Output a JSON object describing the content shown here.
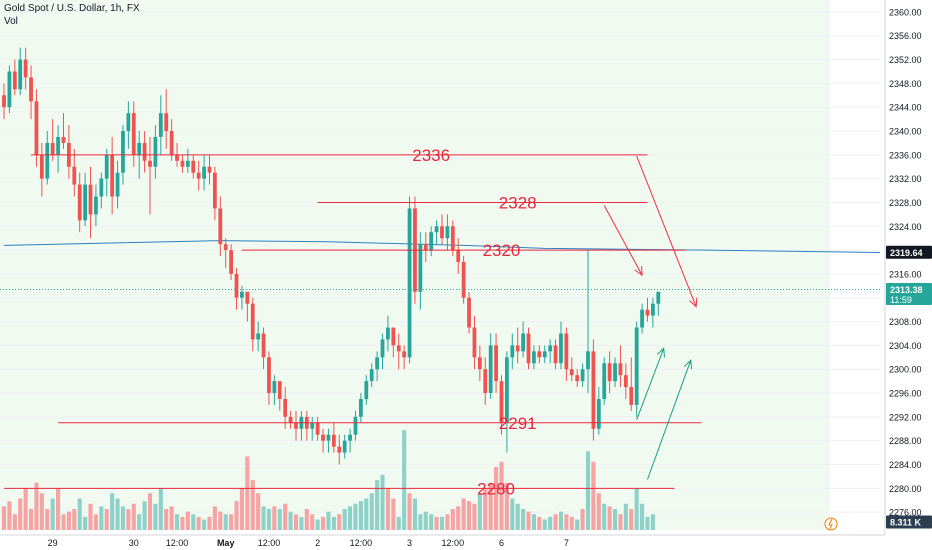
{
  "header": {
    "symbol_line": "Gold Spot / U.S. Dollar, 1h, FX",
    "volume_label": "Vol"
  },
  "price_axis": {
    "ticks": [
      "2360.00",
      "2356.00",
      "2352.00",
      "2348.00",
      "2344.00",
      "2340.00",
      "2336.00",
      "2332.00",
      "2328.00",
      "2324.00",
      "2320.00",
      "2316.00",
      "2312.00",
      "2308.00",
      "2304.00",
      "2300.00",
      "2296.00",
      "2292.00",
      "2288.00",
      "2284.00",
      "2280.00",
      "2276.00"
    ],
    "ma_tag": "2319.64",
    "last_price_tag": "2313.38",
    "countdown": "11:59",
    "volume_tag": "8.311 K"
  },
  "time_axis": {
    "labels": [
      "29",
      "30",
      "12:00",
      "May",
      "12:00",
      "2",
      "12:00",
      "3",
      "12:00",
      "6",
      "7"
    ]
  },
  "colors": {
    "up": "#26a69a",
    "down": "#ef5350",
    "up_volume": "#8dd1c8",
    "down_volume": "#f5a3a3",
    "moving_average": "#2e7fc0",
    "levels": "#e8283e",
    "arrow_red": "#ef3040",
    "arrow_green": "#169e7e",
    "background_tint": "#f1faf1"
  },
  "chart_data": {
    "type": "candlestick",
    "ylim": [
      2273,
      2362
    ],
    "x_span_bars": [
      0,
      162
    ],
    "ohlc": [
      [
        2346,
        2348,
        2342,
        2344
      ],
      [
        2344,
        2351,
        2343,
        2350
      ],
      [
        2350,
        2352,
        2346,
        2347
      ],
      [
        2347,
        2354,
        2346,
        2352
      ],
      [
        2352,
        2354,
        2347,
        2349
      ],
      [
        2349,
        2351,
        2342,
        2345
      ],
      [
        2345,
        2347,
        2334,
        2336
      ],
      [
        2336,
        2338,
        2329,
        2332
      ],
      [
        2332,
        2340,
        2331,
        2338
      ],
      [
        2338,
        2342,
        2335,
        2336
      ],
      [
        2336,
        2341,
        2333,
        2339
      ],
      [
        2339,
        2343,
        2337,
        2338
      ],
      [
        2338,
        2341,
        2332,
        2334
      ],
      [
        2334,
        2337,
        2329,
        2331
      ],
      [
        2331,
        2333,
        2323,
        2325
      ],
      [
        2325,
        2333,
        2324,
        2331
      ],
      [
        2331,
        2334,
        2322,
        2326
      ],
      [
        2326,
        2331,
        2324,
        2329
      ],
      [
        2329,
        2333,
        2327,
        2332
      ],
      [
        2332,
        2337,
        2329,
        2336
      ],
      [
        2336,
        2339,
        2326,
        2329
      ],
      [
        2329,
        2335,
        2327,
        2333
      ],
      [
        2333,
        2341,
        2331,
        2340
      ],
      [
        2340,
        2345,
        2337,
        2343
      ],
      [
        2343,
        2345,
        2334,
        2336
      ],
      [
        2336,
        2340,
        2332,
        2338
      ],
      [
        2338,
        2340,
        2333,
        2335
      ],
      [
        2335,
        2339,
        2326,
        2334
      ],
      [
        2334,
        2341,
        2332,
        2339
      ],
      [
        2339,
        2346,
        2336,
        2343
      ],
      [
        2343,
        2347,
        2337,
        2340
      ],
      [
        2340,
        2342,
        2335,
        2336
      ],
      [
        2336,
        2338,
        2334,
        2335
      ],
      [
        2335,
        2336,
        2333,
        2334
      ],
      [
        2334,
        2337,
        2333,
        2335
      ],
      [
        2335,
        2336,
        2332,
        2333
      ],
      [
        2333,
        2335,
        2330,
        2332
      ],
      [
        2332,
        2336,
        2330,
        2334
      ],
      [
        2334,
        2336,
        2331,
        2333
      ],
      [
        2333,
        2334,
        2325,
        2327
      ],
      [
        2327,
        2329,
        2319,
        2321
      ],
      [
        2321,
        2322,
        2317,
        2320
      ],
      [
        2320,
        2321,
        2315,
        2316
      ],
      [
        2316,
        2317,
        2310,
        2312
      ],
      [
        2312,
        2314,
        2310,
        2313
      ],
      [
        2313,
        2313,
        2308,
        2311
      ],
      [
        2311,
        2312,
        2303,
        2305
      ],
      [
        2305,
        2308,
        2303,
        2306
      ],
      [
        2306,
        2307,
        2300,
        2302
      ],
      [
        2302,
        2303,
        2294,
        2296
      ],
      [
        2296,
        2299,
        2294,
        2298
      ],
      [
        2298,
        2298,
        2293,
        2295
      ],
      [
        2295,
        2297,
        2290,
        2292
      ],
      [
        2292,
        2293,
        2290,
        2291
      ],
      [
        2291,
        2293,
        2288,
        2290
      ],
      [
        2290,
        2293,
        2288,
        2292
      ],
      [
        2292,
        2293,
        2288,
        2290
      ],
      [
        2290,
        2292,
        2288,
        2291
      ],
      [
        2291,
        2292,
        2288,
        2289
      ],
      [
        2289,
        2290,
        2286,
        2288
      ],
      [
        2288,
        2290,
        2286,
        2289
      ],
      [
        2289,
        2291,
        2286,
        2287
      ],
      [
        2287,
        2289,
        2284,
        2286
      ],
      [
        2286,
        2289,
        2285,
        2288
      ],
      [
        2288,
        2290,
        2286,
        2289
      ],
      [
        2289,
        2293,
        2288,
        2292
      ],
      [
        2292,
        2296,
        2291,
        2295
      ],
      [
        2295,
        2299,
        2294,
        2298
      ],
      [
        2298,
        2301,
        2297,
        2300
      ],
      [
        2300,
        2303,
        2298,
        2302
      ],
      [
        2302,
        2306,
        2300,
        2305
      ],
      [
        2305,
        2309,
        2303,
        2307
      ],
      [
        2307,
        2307,
        2302,
        2304
      ],
      [
        2304,
        2306,
        2300,
        2303
      ],
      [
        2303,
        2304,
        2300,
        2302
      ],
      [
        2302,
        2329,
        2301,
        2327
      ],
      [
        2327,
        2329,
        2311,
        2313
      ],
      [
        2313,
        2323,
        2310,
        2321
      ],
      [
        2321,
        2323,
        2318,
        2320
      ],
      [
        2320,
        2324,
        2319,
        2323
      ],
      [
        2323,
        2325,
        2321,
        2324
      ],
      [
        2324,
        2326,
        2321,
        2322
      ],
      [
        2322,
        2326,
        2320,
        2324
      ],
      [
        2324,
        2325,
        2319,
        2320
      ],
      [
        2320,
        2322,
        2316,
        2318
      ],
      [
        2318,
        2319,
        2311,
        2312
      ],
      [
        2312,
        2313,
        2306,
        2307
      ],
      [
        2307,
        2309,
        2300,
        2302
      ],
      [
        2302,
        2304,
        2298,
        2300
      ],
      [
        2300,
        2302,
        2294,
        2296
      ],
      [
        2296,
        2306,
        2295,
        2304
      ],
      [
        2304,
        2306,
        2296,
        2298
      ],
      [
        2298,
        2299,
        2289,
        2291
      ],
      [
        2291,
        2303,
        2286,
        2302
      ],
      [
        2302,
        2306,
        2300,
        2304
      ],
      [
        2304,
        2307,
        2301,
        2303
      ],
      [
        2303,
        2308,
        2302,
        2306
      ],
      [
        2306,
        2307,
        2300,
        2301
      ],
      [
        2301,
        2304,
        2300,
        2303
      ],
      [
        2303,
        2304,
        2301,
        2302
      ],
      [
        2302,
        2304,
        2301,
        2303
      ],
      [
        2303,
        2305,
        2301,
        2304
      ],
      [
        2304,
        2305,
        2300,
        2301
      ],
      [
        2301,
        2308,
        2300,
        2306
      ],
      [
        2306,
        2307,
        2298,
        2300
      ],
      [
        2300,
        2302,
        2298,
        2299
      ],
      [
        2299,
        2300,
        2297,
        2298
      ],
      [
        2298,
        2301,
        2297,
        2300
      ],
      [
        2300,
        2320,
        2296,
        2303
      ],
      [
        2303,
        2305,
        2288,
        2290
      ],
      [
        2290,
        2297,
        2289,
        2295
      ],
      [
        2295,
        2302,
        2294,
        2301
      ],
      [
        2301,
        2303,
        2296,
        2298
      ],
      [
        2298,
        2302,
        2297,
        2301
      ],
      [
        2301,
        2304,
        2297,
        2299
      ],
      [
        2299,
        2301,
        2295,
        2297
      ],
      [
        2297,
        2302,
        2293,
        2294
      ],
      [
        2294,
        2308,
        2292,
        2307
      ],
      [
        2307,
        2311,
        2306,
        2310
      ],
      [
        2310,
        2312,
        2308,
        2309
      ],
      [
        2309,
        2312,
        2307,
        2311
      ],
      [
        2311,
        2313,
        2309,
        2313
      ]
    ],
    "moving_average": [
      [
        0,
        2320.8
      ],
      [
        40,
        2321.6
      ],
      [
        60,
        2321.4
      ],
      [
        85,
        2320.8
      ],
      [
        100,
        2320.3
      ],
      [
        130,
        2320.0
      ],
      [
        162,
        2319.6
      ]
    ],
    "volume": [
      [
        9,
        0
      ],
      [
        11,
        0
      ],
      [
        6,
        0
      ],
      [
        12,
        0
      ],
      [
        16,
        0
      ],
      [
        8,
        0
      ],
      [
        18,
        0
      ],
      [
        14,
        0
      ],
      [
        8,
        0
      ],
      [
        12,
        1
      ],
      [
        16,
        0
      ],
      [
        6,
        0
      ],
      [
        7,
        0
      ],
      [
        8,
        0
      ],
      [
        12,
        1
      ],
      [
        5,
        1
      ],
      [
        10,
        0
      ],
      [
        6,
        0
      ],
      [
        9,
        1
      ],
      [
        8,
        0
      ],
      [
        14,
        1
      ],
      [
        12,
        1
      ],
      [
        9,
        1
      ],
      [
        8,
        0
      ],
      [
        10,
        0
      ],
      [
        6,
        1
      ],
      [
        11,
        1
      ],
      [
        14,
        0
      ],
      [
        10,
        1
      ],
      [
        16,
        1
      ],
      [
        8,
        0
      ],
      [
        9,
        0
      ],
      [
        6,
        1
      ],
      [
        5,
        0
      ],
      [
        7,
        0
      ],
      [
        6,
        1
      ],
      [
        5,
        0
      ],
      [
        4,
        1
      ],
      [
        5,
        0
      ],
      [
        9,
        0
      ],
      [
        7,
        0
      ],
      [
        6,
        1
      ],
      [
        6,
        0
      ],
      [
        11,
        0
      ],
      [
        16,
        0
      ],
      [
        28,
        0
      ],
      [
        19,
        0
      ],
      [
        14,
        0
      ],
      [
        9,
        1
      ],
      [
        8,
        1
      ],
      [
        9,
        0
      ],
      [
        8,
        1
      ],
      [
        10,
        0
      ],
      [
        7,
        1
      ],
      [
        6,
        0
      ],
      [
        5,
        1
      ],
      [
        8,
        0
      ],
      [
        6,
        0
      ],
      [
        4,
        1
      ],
      [
        5,
        0
      ],
      [
        7,
        1
      ],
      [
        5,
        1
      ],
      [
        6,
        0
      ],
      [
        8,
        1
      ],
      [
        9,
        1
      ],
      [
        10,
        1
      ],
      [
        11,
        1
      ],
      [
        12,
        1
      ],
      [
        14,
        1
      ],
      [
        19,
        1
      ],
      [
        21,
        1
      ],
      [
        16,
        0
      ],
      [
        12,
        0
      ],
      [
        5,
        1
      ],
      [
        38,
        1
      ],
      [
        14,
        0
      ],
      [
        12,
        1
      ],
      [
        6,
        1
      ],
      [
        7,
        1
      ],
      [
        6,
        1
      ],
      [
        5,
        0
      ],
      [
        5,
        1
      ],
      [
        6,
        0
      ],
      [
        8,
        0
      ],
      [
        9,
        0
      ],
      [
        12,
        0
      ],
      [
        11,
        0
      ],
      [
        10,
        0
      ],
      [
        14,
        1
      ],
      [
        16,
        0
      ],
      [
        18,
        0
      ],
      [
        24,
        0
      ],
      [
        26,
        0
      ],
      [
        18,
        0
      ],
      [
        12,
        1
      ],
      [
        10,
        1
      ],
      [
        8,
        1
      ],
      [
        7,
        0
      ],
      [
        6,
        1
      ],
      [
        5,
        0
      ],
      [
        4,
        1
      ],
      [
        5,
        1
      ],
      [
        6,
        0
      ],
      [
        7,
        1
      ],
      [
        6,
        0
      ],
      [
        5,
        0
      ],
      [
        4,
        1
      ],
      [
        8,
        0
      ],
      [
        30,
        1
      ],
      [
        26,
        0
      ],
      [
        14,
        0
      ],
      [
        10,
        1
      ],
      [
        9,
        0
      ],
      [
        8,
        1
      ],
      [
        6,
        0
      ],
      [
        10,
        1
      ],
      [
        8,
        0
      ],
      [
        16,
        1
      ],
      [
        10,
        1
      ],
      [
        5,
        1
      ],
      [
        6,
        1
      ]
    ],
    "levels": [
      {
        "label": "2336",
        "value": 2336,
        "x": [
          5,
          119
        ],
        "label_at": 79
      },
      {
        "label": "2328",
        "value": 2328,
        "x": [
          58,
          119
        ],
        "label_at": 95
      },
      {
        "label": "2320",
        "value": 2320,
        "x": [
          44,
          126
        ],
        "label_at": 92
      },
      {
        "label": "2291",
        "value": 2291,
        "x": [
          10,
          129
        ],
        "label_at": 95
      },
      {
        "label": "2280",
        "value": 2280,
        "x": [
          0,
          124
        ],
        "label_at": 91
      }
    ],
    "arrows": [
      {
        "color": "red",
        "from": [
          117,
          2335.8
        ],
        "to": [
          128,
          2310.5
        ]
      },
      {
        "color": "red",
        "from": [
          111,
          2327.5
        ],
        "to": [
          118,
          2315.8
        ]
      },
      {
        "color": "green",
        "from": [
          117,
          2291.5
        ],
        "to": [
          122,
          2303.5
        ]
      },
      {
        "color": "green",
        "from": [
          119,
          2281.5
        ],
        "to": [
          127,
          2301.5
        ]
      }
    ]
  }
}
